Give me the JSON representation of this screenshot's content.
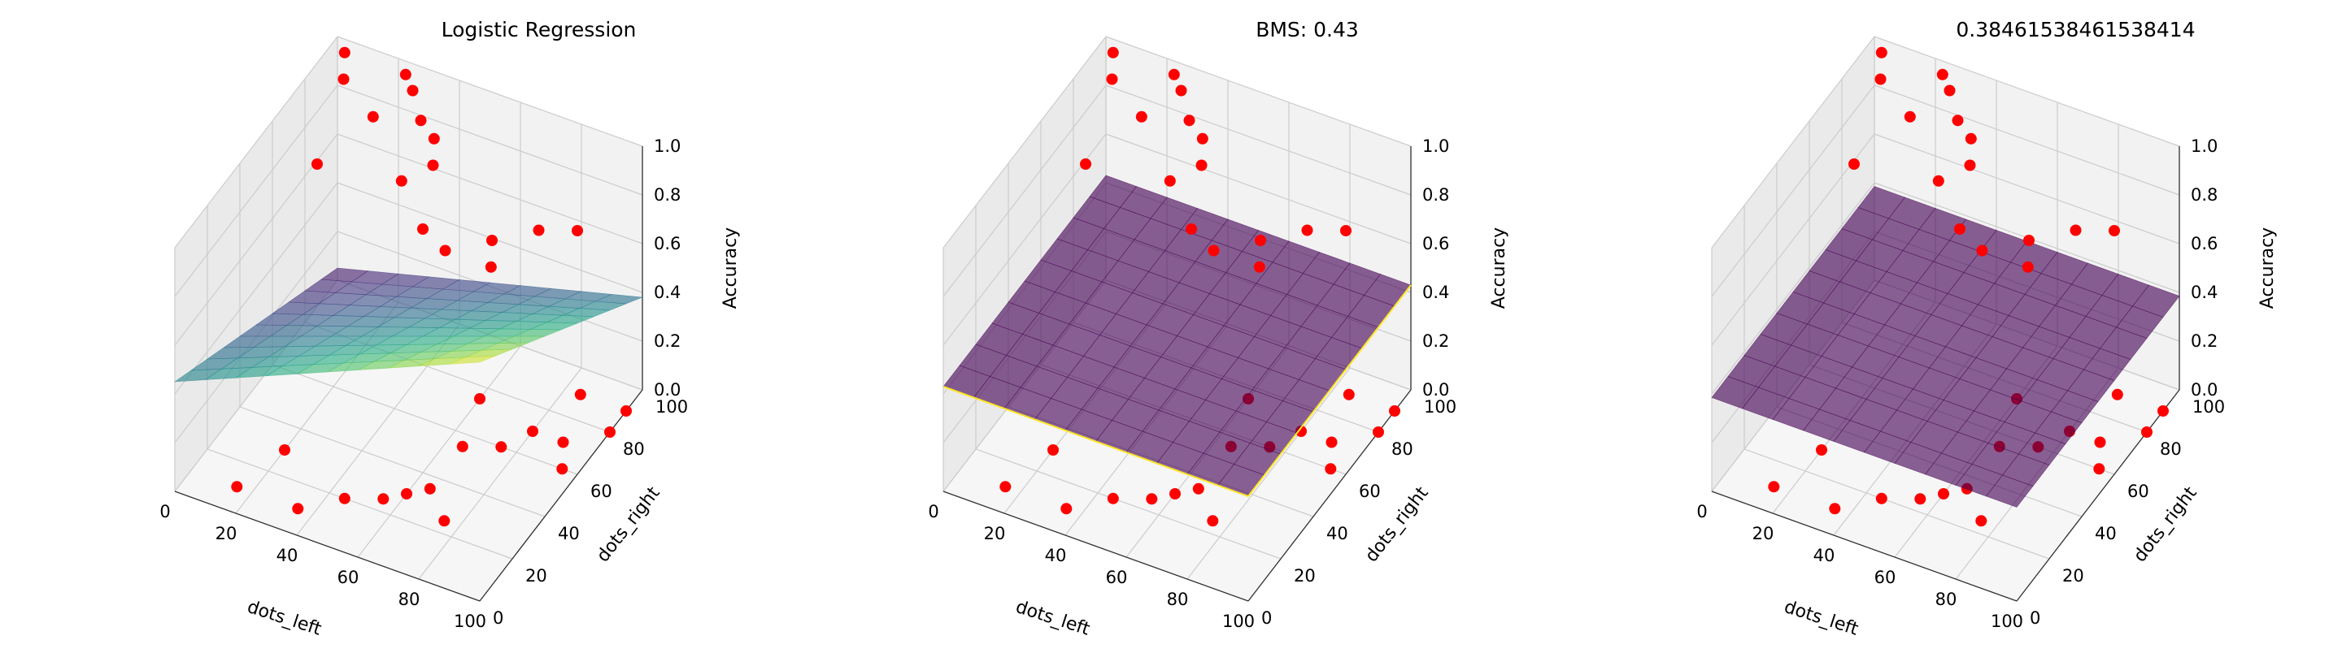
{
  "chart_data": [
    {
      "type": "scatter",
      "title": "Logistic Regression",
      "xlabel": "dots_left",
      "ylabel": "dots_right",
      "zlabel": "Accuracy",
      "xlim": [
        0,
        100
      ],
      "ylim": [
        0,
        100
      ],
      "zlim": [
        0,
        1
      ],
      "xticks": [
        "0",
        "20",
        "40",
        "60",
        "80",
        "100"
      ],
      "yticks": [
        "0",
        "20",
        "40",
        "60",
        "80",
        "100"
      ],
      "zticks": [
        "0.0",
        "0.2",
        "0.4",
        "0.6",
        "0.8",
        "1.0"
      ],
      "grid": true,
      "surface": {
        "kind": "logistic",
        "colormap": "viridis",
        "z00": 0.45,
        "z10": 0.98,
        "z01": 0.05,
        "z11": 0.38
      }
    },
    {
      "type": "scatter",
      "title": "BMS: 0.43",
      "xlabel": "dots_left",
      "ylabel": "dots_right",
      "zlabel": "Accuracy",
      "xlim": [
        0,
        100
      ],
      "ylim": [
        0,
        100
      ],
      "zlim": [
        0,
        1
      ],
      "xticks": [
        "0",
        "20",
        "40",
        "60",
        "80",
        "100"
      ],
      "yticks": [
        "0",
        "20",
        "40",
        "60",
        "80",
        "100"
      ],
      "zticks": [
        "0.0",
        "0.2",
        "0.4",
        "0.6",
        "0.8",
        "1.0"
      ],
      "grid": true,
      "surface": {
        "kind": "flat",
        "colormap": "viridis",
        "z": 0.43,
        "edge_color": "#fde725"
      }
    },
    {
      "type": "scatter",
      "title": "0.38461538461538414",
      "xlabel": "dots_left",
      "ylabel": "dots_right",
      "zlabel": "Accuracy",
      "xlim": [
        0,
        100
      ],
      "ylim": [
        0,
        100
      ],
      "zlim": [
        0,
        1
      ],
      "xticks": [
        "0",
        "20",
        "40",
        "60",
        "80",
        "100"
      ],
      "yticks": [
        "0",
        "20",
        "40",
        "60",
        "80",
        "100"
      ],
      "zticks": [
        "0.0",
        "0.2",
        "0.4",
        "0.6",
        "0.8",
        "1.0"
      ],
      "grid": true,
      "surface": {
        "kind": "flat",
        "colormap": "viridis",
        "z": 0.385
      }
    }
  ],
  "points": [
    {
      "x": 5,
      "y": 95,
      "z": 1
    },
    {
      "x": 10,
      "y": 85,
      "z": 1
    },
    {
      "x": 25,
      "y": 95,
      "z": 1
    },
    {
      "x": 30,
      "y": 90,
      "z": 1
    },
    {
      "x": 25,
      "y": 75,
      "z": 1
    },
    {
      "x": 38,
      "y": 80,
      "z": 1
    },
    {
      "x": 45,
      "y": 75,
      "z": 1
    },
    {
      "x": 50,
      "y": 65,
      "z": 1
    },
    {
      "x": 45,
      "y": 55,
      "z": 1
    },
    {
      "x": 60,
      "y": 40,
      "z": 1
    },
    {
      "x": 70,
      "y": 35,
      "z": 1
    },
    {
      "x": 80,
      "y": 45,
      "z": 1
    },
    {
      "x": 85,
      "y": 35,
      "z": 1
    },
    {
      "x": 90,
      "y": 55,
      "z": 1
    },
    {
      "x": 100,
      "y": 60,
      "z": 1
    },
    {
      "x": 20,
      "y": 50,
      "z": 1
    },
    {
      "x": 20,
      "y": 30,
      "z": 0
    },
    {
      "x": 45,
      "y": 20,
      "z": 0
    },
    {
      "x": 55,
      "y": 25,
      "z": 0
    },
    {
      "x": 60,
      "y": 30,
      "z": 0
    },
    {
      "x": 65,
      "y": 35,
      "z": 0
    },
    {
      "x": 65,
      "y": 55,
      "z": 0
    },
    {
      "x": 60,
      "y": 75,
      "z": 0
    },
    {
      "x": 75,
      "y": 60,
      "z": 0
    },
    {
      "x": 80,
      "y": 70,
      "z": 0
    },
    {
      "x": 85,
      "y": 90,
      "z": 0
    },
    {
      "x": 90,
      "y": 70,
      "z": 0
    },
    {
      "x": 95,
      "y": 60,
      "z": 0
    },
    {
      "x": 100,
      "y": 90,
      "z": 0
    },
    {
      "x": 100,
      "y": 80,
      "z": 0
    },
    {
      "x": 35,
      "y": 10,
      "z": 0
    },
    {
      "x": 15,
      "y": 10,
      "z": 0
    },
    {
      "x": 75,
      "y": 25,
      "z": 0
    }
  ],
  "colors": {
    "points": "#ff0000",
    "grid": "#cccccc",
    "pane_side": "#eaeaea",
    "pane_back": "#f2f2f2",
    "pane_floor": "#f6f6f6"
  }
}
